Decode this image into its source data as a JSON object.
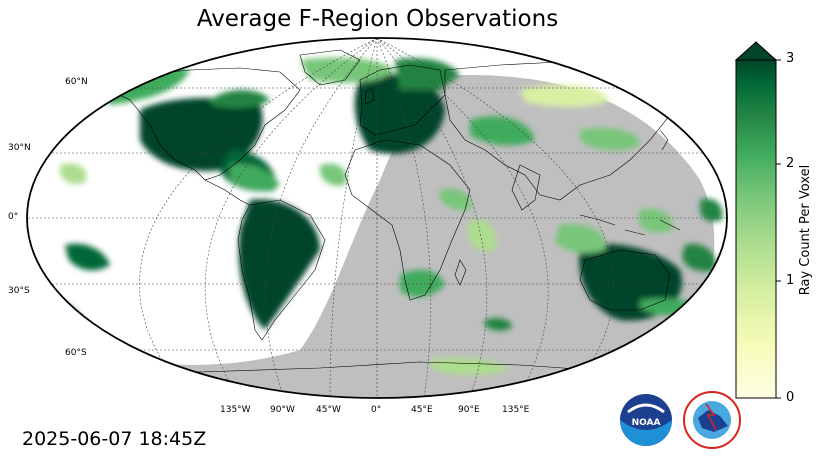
{
  "title": "Average F-Region Observations",
  "timestamp": "2025-06-07 18:45Z",
  "lat_labels": [
    "60°N",
    "30°N",
    "0°",
    "30°S",
    "60°S"
  ],
  "lon_labels": [
    "135°W",
    "90°W",
    "45°W",
    "0°",
    "45°E",
    "90°E",
    "135°E"
  ],
  "colorbar": {
    "label": "Ray Count Per Voxel",
    "ticks": [
      "0",
      "1",
      "2",
      "3"
    ],
    "min": 0,
    "max": 3,
    "extend": "max",
    "colors": [
      "#ffffe5",
      "#f7fcb9",
      "#d9f0a3",
      "#addd8e",
      "#78c679",
      "#41ab5d",
      "#238443",
      "#006837",
      "#004529"
    ]
  },
  "map": {
    "projection": "Robinson",
    "night_color": "#bfbfbf",
    "land_outline": "coastlines and country borders",
    "grid": true
  },
  "logos": {
    "noaa": "NOAA",
    "nws_ring": "NATIONAL WEATHER SERVICE"
  }
}
